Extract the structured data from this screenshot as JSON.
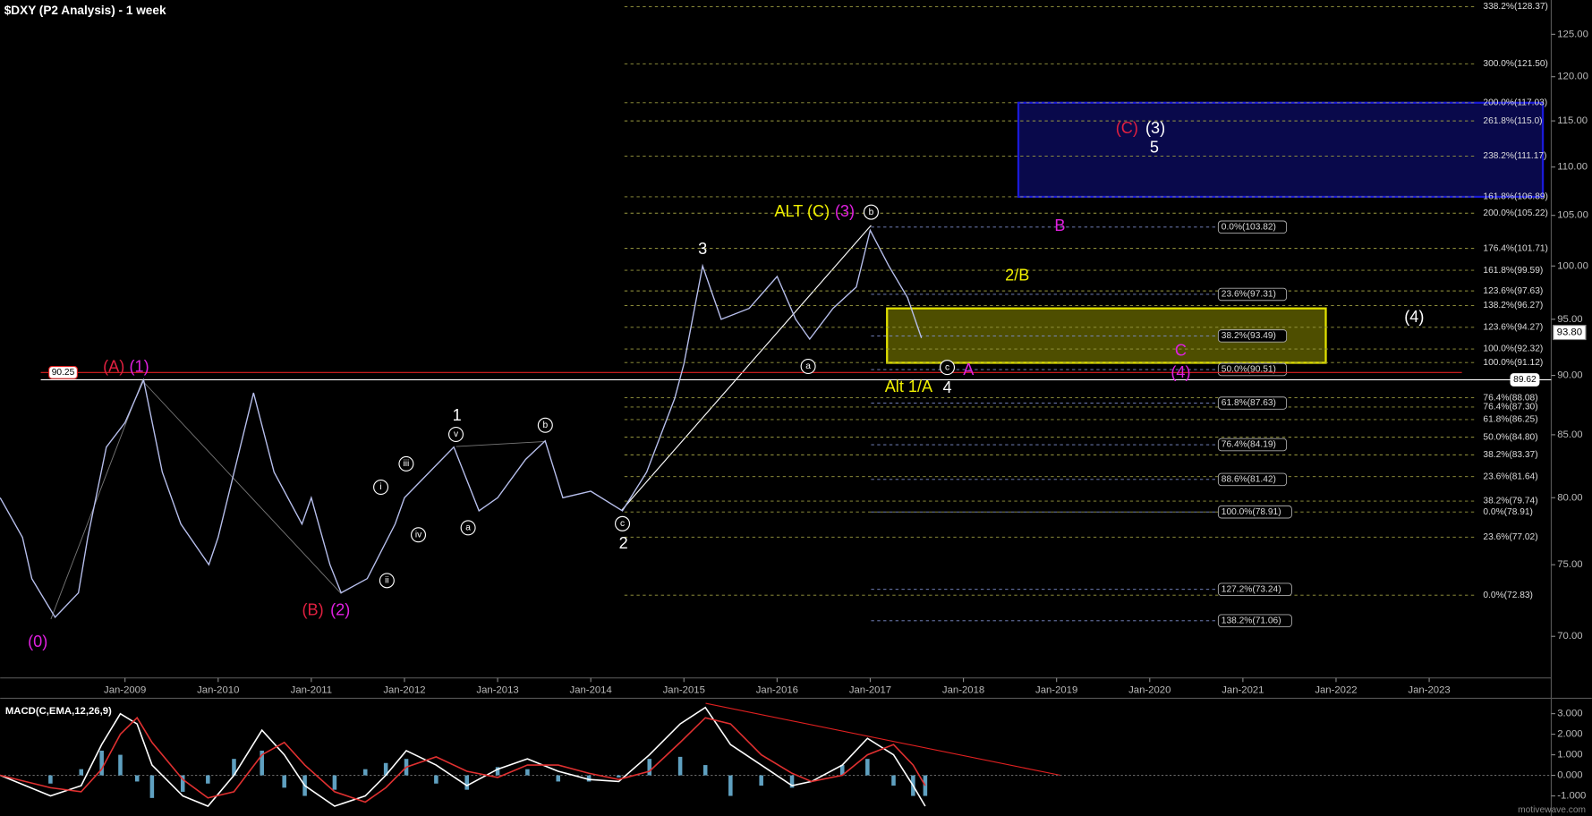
{
  "chart_data": {
    "type": "line",
    "title": "$DXY (P2 Analysis) - 1 week",
    "log": true,
    "xlim": [
      2007.66,
      2024.31
    ],
    "ylim": [
      67.25,
      129.2
    ],
    "xticks": [
      {
        "value": 2009,
        "label": "Jan-2009"
      },
      {
        "value": 2010,
        "label": "Jan-2010"
      },
      {
        "value": 2011,
        "label": "Jan-2011"
      },
      {
        "value": 2012,
        "label": "Jan-2012"
      },
      {
        "value": 2013,
        "label": "Jan-2013"
      },
      {
        "value": 2014,
        "label": "Jan-2014"
      },
      {
        "value": 2015,
        "label": "Jan-2015"
      },
      {
        "value": 2016,
        "label": "Jan-2016"
      },
      {
        "value": 2017,
        "label": "Jan-2017"
      },
      {
        "value": 2018,
        "label": "Jan-2018"
      },
      {
        "value": 2019,
        "label": "Jan-2019"
      },
      {
        "value": 2020,
        "label": "Jan-2020"
      },
      {
        "value": 2021,
        "label": "Jan-2021"
      },
      {
        "value": 2022,
        "label": "Jan-2022"
      },
      {
        "value": 2023,
        "label": "Jan-2023"
      }
    ],
    "yticks": [
      {
        "value": 70,
        "label": "70.00"
      },
      {
        "value": 75,
        "label": "75.00"
      },
      {
        "value": 80,
        "label": "80.00"
      },
      {
        "value": 85,
        "label": "85.00"
      },
      {
        "value": 90,
        "label": "90.00"
      },
      {
        "value": 95,
        "label": "95.00"
      },
      {
        "value": 100,
        "label": "100.00"
      },
      {
        "value": 105,
        "label": "105.00"
      },
      {
        "value": 110,
        "label": "110.00"
      },
      {
        "value": 115,
        "label": "115.00"
      },
      {
        "value": 120,
        "label": "120.00"
      },
      {
        "value": 125,
        "label": "125.00"
      }
    ],
    "price": {
      "color": "#b8c0ee",
      "x": [
        2007.66,
        2007.9,
        2008.0,
        2008.25,
        2008.5,
        2008.6,
        2008.8,
        2009.0,
        2009.2,
        2009.4,
        2009.6,
        2009.9,
        2010.0,
        2010.38,
        2010.6,
        2010.9,
        2011.0,
        2011.2,
        2011.32,
        2011.6,
        2011.9,
        2012.0,
        2012.53,
        2012.8,
        2013.0,
        2013.3,
        2013.51,
        2013.7,
        2014.0,
        2014.34,
        2014.6,
        2014.9,
        2015.0,
        2015.2,
        2015.4,
        2015.7,
        2016.0,
        2016.2,
        2016.35,
        2016.6,
        2016.85,
        2017.0,
        2017.2,
        2017.4,
        2017.55
      ],
      "values": [
        80,
        77,
        74,
        71.3,
        73,
        77,
        84,
        86,
        89.6,
        82,
        78,
        75,
        77,
        88.5,
        82,
        78,
        80,
        75,
        73,
        74,
        78,
        80,
        84,
        79,
        80,
        83,
        84.5,
        80,
        80.5,
        79,
        82,
        88,
        91,
        100,
        95,
        96,
        99,
        95,
        93.2,
        96,
        98,
        103.5,
        100,
        97,
        93.3
      ]
    },
    "levels": [
      {
        "value": 90.25,
        "color": "#e02020"
      },
      {
        "value": 89.62,
        "color": "#ffffff"
      }
    ],
    "last": {
      "value": 93.8,
      "label": "93.80"
    },
    "zones": [
      {
        "color": "#1a1ad8",
        "xlim": [
          2018.59,
          2024.22
        ],
        "ylim": [
          106.89,
          117.03
        ]
      },
      {
        "color": "#e0e000",
        "xlim": [
          2017.18,
          2021.89
        ],
        "ylim": [
          91.1,
          96.0
        ]
      }
    ],
    "fib_sets": [
      {
        "color": "#9c9c40",
        "levels": [
          {
            "value": 128.37,
            "label": "338.2%(128.37)"
          },
          {
            "value": 121.5,
            "label": "300.0%(121.50)"
          },
          {
            "value": 117.03,
            "label": "200.0%(117.03)"
          },
          {
            "value": 115.0,
            "label": "261.8%(115.0)"
          },
          {
            "value": 111.17,
            "label": "238.2%(111.17)"
          },
          {
            "value": 106.89,
            "label": "161.8%(106.89)"
          },
          {
            "value": 105.22,
            "label": "200.0%(105.22)"
          },
          {
            "value": 101.71,
            "label": "176.4%(101.71)"
          },
          {
            "value": 99.59,
            "label": "161.8%(99.59)"
          },
          {
            "value": 97.63,
            "label": "123.6%(97.63)"
          },
          {
            "value": 96.27,
            "label": "138.2%(96.27)"
          },
          {
            "value": 94.27,
            "label": "123.6%(94.27)"
          },
          {
            "value": 92.32,
            "label": "100.0%(92.32)"
          },
          {
            "value": 91.12,
            "label": "100.0%(91.12)"
          },
          {
            "value": 88.08,
            "label": "76.4%(88.08)"
          },
          {
            "value": 87.3,
            "label": "76.4%(87.30)"
          },
          {
            "value": 86.25,
            "label": "61.8%(86.25)"
          },
          {
            "value": 84.8,
            "label": "50.0%(84.80)"
          },
          {
            "value": 83.37,
            "label": "38.2%(83.37)"
          },
          {
            "value": 81.64,
            "label": "23.6%(81.64)"
          },
          {
            "value": 79.74,
            "label": "38.2%(79.74)"
          },
          {
            "value": 78.91,
            "label": "0.0%(78.91)"
          },
          {
            "value": 77.02,
            "label": "23.6%(77.02)"
          },
          {
            "value": 72.83,
            "label": "0.0%(72.83)"
          }
        ]
      },
      {
        "color": "#7f8fd0",
        "levels": [
          {
            "value": 103.82,
            "label": "0.0%(103.82)"
          },
          {
            "value": 97.31,
            "label": "23.6%(97.31)"
          },
          {
            "value": 93.49,
            "label": "38.2%(93.49)"
          },
          {
            "value": 90.51,
            "label": "50.0%(90.51)"
          },
          {
            "value": 87.63,
            "label": "61.8%(87.63)"
          },
          {
            "value": 84.19,
            "label": "76.4%(84.19)"
          },
          {
            "value": 81.42,
            "label": "88.6%(81.42)"
          },
          {
            "value": 78.91,
            "label": "100.0%(78.91)"
          },
          {
            "value": 73.24,
            "label": "127.2%(73.24)"
          },
          {
            "value": 71.06,
            "label": "138.2%(71.06)"
          }
        ]
      }
    ],
    "annotations": [
      {
        "text": "(0)",
        "color": "#e020e0"
      },
      {
        "text": "(A)",
        "color": "#e02040"
      },
      {
        "text": "(1)",
        "color": "#e020e0"
      },
      {
        "text": "(B)",
        "color": "#e02040"
      },
      {
        "text": "(2)",
        "color": "#e020e0"
      },
      {
        "text": "1",
        "color": "#ffffff"
      },
      {
        "text": "2",
        "color": "#ffffff"
      },
      {
        "text": "3",
        "color": "#ffffff"
      },
      {
        "text": "4",
        "color": "#ffffff"
      },
      {
        "text": "5",
        "color": "#ffffff"
      },
      {
        "text": "(C)",
        "color": "#e02040"
      },
      {
        "text": "(3)",
        "color": "#ffffff"
      },
      {
        "text": "ALT (C)",
        "color": "#f0f000"
      },
      {
        "text": "(3)",
        "color": "#e020e0"
      },
      {
        "text": "Alt 1/A",
        "color": "#f0f000"
      },
      {
        "text": "2/B",
        "color": "#f0f000"
      },
      {
        "text": "B",
        "color": "#e020e0"
      },
      {
        "text": "A",
        "color": "#e020e0"
      },
      {
        "text": "C",
        "color": "#e020e0"
      },
      {
        "text": "(4)",
        "color": "#e020e0"
      },
      {
        "text": "(4)",
        "color": "#ffffff"
      },
      {
        "text": "i",
        "color": "#ffffff",
        "circled": true
      },
      {
        "text": "ii",
        "color": "#ffffff",
        "circled": true
      },
      {
        "text": "iii",
        "color": "#ffffff",
        "circled": true
      },
      {
        "text": "iv",
        "color": "#ffffff",
        "circled": true
      },
      {
        "text": "v",
        "color": "#ffffff",
        "circled": true
      },
      {
        "text": "a",
        "color": "#ffffff",
        "circled": true
      },
      {
        "text": "b",
        "color": "#ffffff",
        "circled": true
      },
      {
        "text": "c",
        "color": "#ffffff",
        "circled": true
      },
      {
        "text": "a",
        "color": "#ffffff",
        "circled": true
      },
      {
        "text": "b",
        "color": "#ffffff",
        "circled": true
      },
      {
        "text": "c",
        "color": "#ffffff",
        "circled": true
      }
    ],
    "macd": {
      "title": "MACD(C,EMA,12,26,9)",
      "ylim": [
        -1.78,
        3.65
      ],
      "yticks": [
        {
          "value": -1,
          "label": "-1.000"
        },
        {
          "value": 0,
          "label": "0.000"
        },
        {
          "value": 1,
          "label": "1.000"
        },
        {
          "value": 2,
          "label": "2.000"
        },
        {
          "value": 3,
          "label": "3.000"
        }
      ],
      "x": [
        2007.66,
        2008.2,
        2008.53,
        2008.75,
        2008.95,
        2009.13,
        2009.29,
        2009.62,
        2009.89,
        2010.17,
        2010.47,
        2010.71,
        2010.93,
        2011.25,
        2011.58,
        2011.8,
        2012.02,
        2012.34,
        2012.67,
        2013.0,
        2013.32,
        2013.65,
        2013.98,
        2014.3,
        2014.63,
        2014.96,
        2015.23,
        2015.5,
        2015.83,
        2016.16,
        2016.37,
        2016.7,
        2016.97,
        2017.25,
        2017.46,
        2017.59
      ],
      "series": [
        {
          "color": "#ffffff",
          "values": [
            0,
            -1,
            -0.5,
            1.5,
            3.0,
            2.5,
            0.5,
            -1,
            -1.5,
            0,
            2.2,
            1.0,
            -0.5,
            -1.5,
            -1,
            0,
            1.2,
            0.5,
            -0.5,
            0.3,
            0.8,
            0.2,
            -0.2,
            -0.3,
            1.0,
            2.5,
            3.3,
            1.5,
            0.5,
            -0.5,
            -0.3,
            0.5,
            1.8,
            1.0,
            -0.5,
            -1.5
          ]
        },
        {
          "color": "#e03030",
          "values": [
            0,
            -0.6,
            -0.8,
            0.3,
            2.0,
            2.8,
            1.6,
            -0.2,
            -1.1,
            -0.8,
            1.0,
            1.6,
            0.5,
            -0.8,
            -1.3,
            -0.6,
            0.4,
            0.9,
            0.2,
            -0.1,
            0.5,
            0.5,
            0.1,
            -0.2,
            0.2,
            1.6,
            2.8,
            2.5,
            1.0,
            0.1,
            -0.3,
            0,
            1.0,
            1.5,
            0.5,
            -0.5
          ]
        }
      ],
      "histogram": {
        "color": "#5fa0c0",
        "values": [
          0,
          -0.4,
          0.3,
          1.2,
          1.0,
          -0.3,
          -1.1,
          -0.8,
          -0.4,
          0.8,
          1.2,
          -0.6,
          -1.0,
          -0.7,
          0.3,
          0.6,
          0.8,
          -0.4,
          -0.7,
          0.4,
          0.3,
          -0.3,
          -0.3,
          -0.1,
          0.8,
          0.9,
          0.5,
          -1.0,
          -0.5,
          -0.6,
          0,
          0.5,
          0.8,
          -0.5,
          -1.0,
          -1.0
        ]
      }
    },
    "watermark": "motivewave.com"
  }
}
